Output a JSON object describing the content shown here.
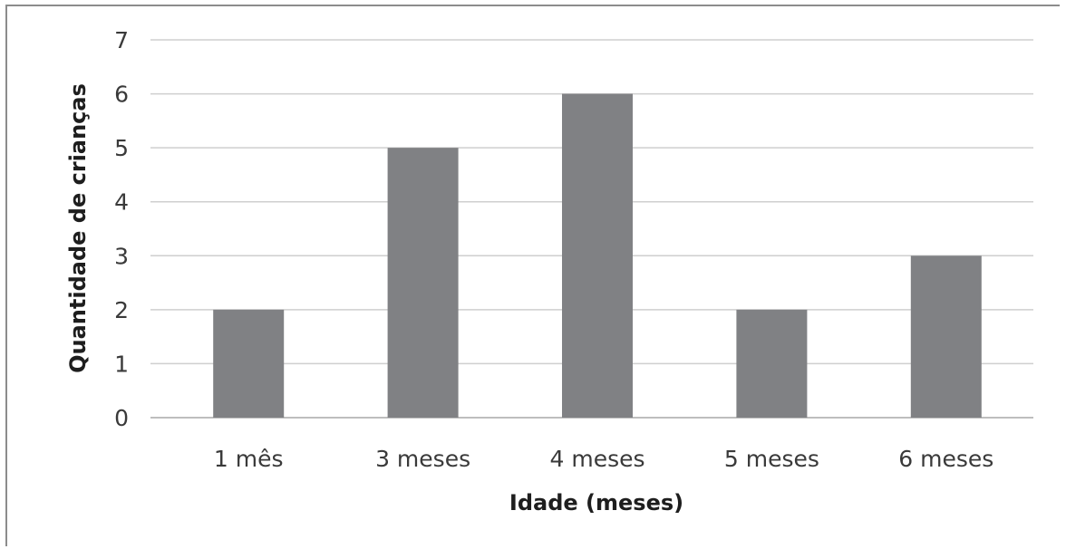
{
  "chart_data": {
    "type": "bar",
    "categories": [
      "1 mês",
      "3 meses",
      "4 meses",
      "5 meses",
      "6 meses"
    ],
    "values": [
      2,
      5,
      6,
      2,
      3
    ],
    "title": "",
    "xlabel": "Idade (meses)",
    "ylabel": "Quantidade de crianças",
    "ylim": [
      0,
      7
    ],
    "yticks": [
      "0",
      "1",
      "2",
      "3",
      "4",
      "5",
      "6",
      "7"
    ],
    "grid": true,
    "legend": "none",
    "bar_color": "#808184",
    "gridline_color": "#cfcfcf"
  }
}
